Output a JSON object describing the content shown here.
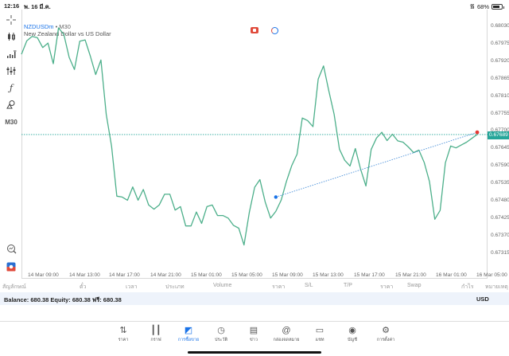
{
  "status_bar": {
    "time": "12:16",
    "date": "พ. 16 มี.ค.",
    "battery": "68%"
  },
  "chart_header": {
    "symbol": "NZDUSDm",
    "separator": " • ",
    "timeframe": "M30",
    "description": "New Zealand Dollar vs US Dollar"
  },
  "left_toolbar": [
    {
      "name": "crosshair-icon",
      "glyph": "+"
    },
    {
      "name": "candlestick-icon",
      "glyph": "┃┃"
    },
    {
      "name": "indicators-icon",
      "glyph": "ıl"
    },
    {
      "name": "objects-icon",
      "glyph": "⫶"
    },
    {
      "name": "function-icon",
      "glyph": "ƒ"
    },
    {
      "name": "shapes-icon",
      "glyph": "◬"
    },
    {
      "name": "timeframe-label",
      "glyph": "M30"
    },
    {
      "name": "zoom-chart-icon",
      "glyph": "⌕"
    },
    {
      "name": "broker-logo-icon",
      "glyph": "◆"
    }
  ],
  "chart_data": {
    "type": "line",
    "title": "NZDUSDm • M30",
    "subtitle": "New Zealand Dollar vs US Dollar",
    "y_ticks": [
      "0.68030",
      "0.67975",
      "0.67920",
      "0.67865",
      "0.67810",
      "0.67755",
      "0.67700",
      "0.67645",
      "0.67590",
      "0.67535",
      "0.67480",
      "0.67425",
      "0.67370",
      "0.67315"
    ],
    "current_price": "0.67689",
    "x_ticks": [
      "14 Mar 09:00",
      "14 Mar 13:00",
      "14 Mar 17:00",
      "14 Mar 21:00",
      "15 Mar 01:00",
      "15 Mar 05:00",
      "15 Mar 09:00",
      "15 Mar 13:00",
      "15 Mar 17:00",
      "15 Mar 21:00",
      "16 Mar 01:00",
      "16 Mar 05:00"
    ],
    "ylim": [
      0.6728,
      0.6806
    ],
    "grid": false,
    "series": [
      {
        "name": "NZDUSDm close",
        "values": [
          0.67942,
          0.67984,
          0.67998,
          0.67994,
          0.67963,
          0.67977,
          0.67912,
          0.68025,
          0.68004,
          0.67932,
          0.67894,
          0.67983,
          0.67987,
          0.67936,
          0.67878,
          0.67924,
          0.67752,
          0.67652,
          0.67495,
          0.67492,
          0.67482,
          0.67524,
          0.67482,
          0.67516,
          0.67467,
          0.67454,
          0.67467,
          0.67501,
          0.67501,
          0.67451,
          0.67462,
          0.67401,
          0.67401,
          0.67445,
          0.67409,
          0.67462,
          0.67467,
          0.67434,
          0.67434,
          0.67426,
          0.67403,
          0.67394,
          0.67341,
          0.67444,
          0.67523,
          0.67547,
          0.67476,
          0.67426,
          0.67447,
          0.67482,
          0.67541,
          0.67591,
          0.67627,
          0.67741,
          0.67733,
          0.67714,
          0.67864,
          0.67905,
          0.67827,
          0.67753,
          0.67643,
          0.67608,
          0.6759,
          0.67645,
          0.6758,
          0.67527,
          0.67642,
          0.67678,
          0.67696,
          0.6767,
          0.6769,
          0.67669,
          0.67665,
          0.6765,
          0.67632,
          0.6764,
          0.67601,
          0.67541,
          0.67422,
          0.6745,
          0.676,
          0.67653,
          0.67647,
          0.67656,
          0.67665,
          0.67677,
          0.67689
        ],
        "color": "#4caf8a"
      }
    ],
    "trendline": {
      "from_index": 48,
      "from_value": 0.67492,
      "to_index": 86,
      "to_value": 0.67696,
      "color": "#4a90d9",
      "style": "dotted"
    },
    "price_line": {
      "value": 0.67689,
      "color": "#26a69a",
      "style": "dotted"
    }
  },
  "table_header": [
    "สัญลักษณ์",
    "ตั๋ว",
    "เวลา",
    "ประเภท",
    "Volume",
    "ราคา",
    "S/L",
    "T/P",
    "ราคา",
    "Swap",
    "กำไร",
    "หมายเหตุ"
  ],
  "account": {
    "summary": "Balance: 680.38 Equity: 680.38 ฟรี: 680.38",
    "currency": "USD"
  },
  "tab_bar": [
    {
      "label": "ราคา",
      "icon": "quotes-icon",
      "glyph": "⇅",
      "active": false
    },
    {
      "label": "กราฟ",
      "icon": "chart-icon",
      "glyph": "┃┃",
      "active": false
    },
    {
      "label": "การซื้อขาย",
      "icon": "trade-icon",
      "glyph": "◩",
      "active": true
    },
    {
      "label": "ประวัติ",
      "icon": "history-icon",
      "glyph": "◷",
      "active": false
    },
    {
      "label": "ข่าว",
      "icon": "news-icon",
      "glyph": "▤",
      "active": false
    },
    {
      "label": "กล่องจดหมาย",
      "icon": "mailbox-icon",
      "glyph": "@",
      "active": false
    },
    {
      "label": "แชท",
      "icon": "chat-icon",
      "glyph": "▭",
      "active": false
    },
    {
      "label": "บัญชี",
      "icon": "account-icon",
      "glyph": "◉",
      "active": false
    },
    {
      "label": "การตั้งค่า",
      "icon": "settings-icon",
      "glyph": "⚙",
      "active": false
    }
  ],
  "colors": {
    "accent": "#1a73e8",
    "line": "#4caf8a",
    "price_tag": "#26a69a",
    "trend": "#4a90d9",
    "end_marker": "#e53935",
    "balance_bg": "#eef3fb"
  }
}
